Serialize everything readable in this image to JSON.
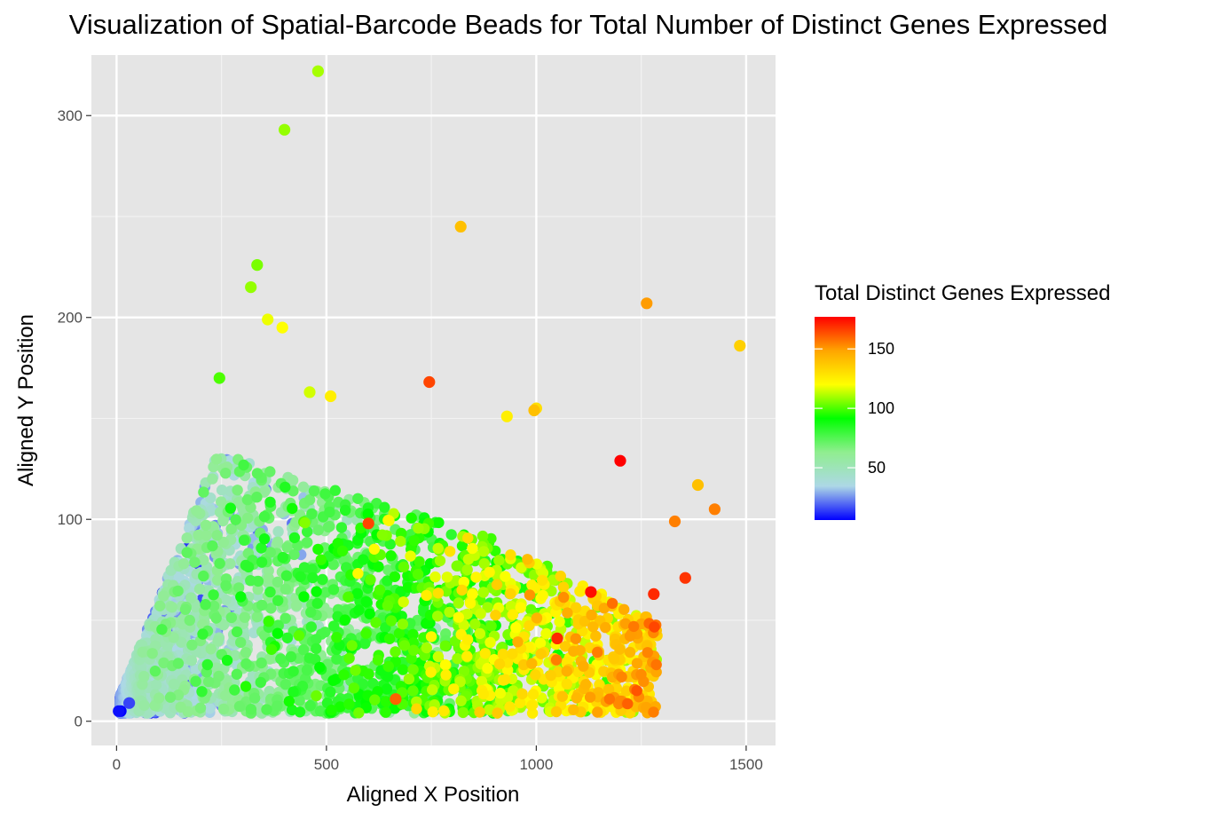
{
  "chart_data": {
    "type": "scatter",
    "title": "Visualization of Spatial-Barcode Beads for Total Number of Distinct Genes Expressed",
    "xlabel": "Aligned X Position",
    "ylabel": "Aligned Y Position",
    "xlim": [
      -60,
      1570
    ],
    "ylim": [
      -12,
      330
    ],
    "x_ticks": [
      0,
      500,
      1000,
      1500
    ],
    "x_tick_labels": [
      "0",
      "500",
      "1000",
      "1500"
    ],
    "y_ticks": [
      0,
      100,
      200,
      300
    ],
    "y_tick_labels": [
      "0",
      "100",
      "200",
      "300"
    ],
    "grid": true,
    "background": "#e5e5e5",
    "legend": {
      "title": "Total Distinct Genes Expressed",
      "position": "right",
      "range": [
        6,
        177
      ],
      "breaks": [
        50,
        100,
        150
      ],
      "break_labels": [
        "50",
        "100",
        "150"
      ],
      "gradient_colors": [
        "#0000ff",
        "#add8e6",
        "#90ee90",
        "#00ff00",
        "#ffff00",
        "#ffa500",
        "#ff0000"
      ]
    },
    "series": [
      {
        "color_encoding": "total_distinct_genes_expressed",
        "points": [
          {
            "x": 480,
            "y": 322,
            "v": 110
          },
          {
            "x": 400,
            "y": 293,
            "v": 108
          },
          {
            "x": 820,
            "y": 245,
            "v": 140
          },
          {
            "x": 335,
            "y": 226,
            "v": 105
          },
          {
            "x": 320,
            "y": 215,
            "v": 108
          },
          {
            "x": 360,
            "y": 199,
            "v": 118
          },
          {
            "x": 395,
            "y": 195,
            "v": 120
          },
          {
            "x": 1263,
            "y": 207,
            "v": 150
          },
          {
            "x": 1485,
            "y": 186,
            "v": 135
          },
          {
            "x": 745,
            "y": 168,
            "v": 165
          },
          {
            "x": 1200,
            "y": 129,
            "v": 177
          },
          {
            "x": 245,
            "y": 170,
            "v": 100
          },
          {
            "x": 460,
            "y": 163,
            "v": 115
          },
          {
            "x": 510,
            "y": 161,
            "v": 125
          },
          {
            "x": 1000,
            "y": 155,
            "v": 130
          },
          {
            "x": 995,
            "y": 154,
            "v": 140
          },
          {
            "x": 930,
            "y": 151,
            "v": 125
          },
          {
            "x": 1385,
            "y": 117,
            "v": 140
          },
          {
            "x": 1425,
            "y": 105,
            "v": 155
          },
          {
            "x": 1130,
            "y": 64,
            "v": 175
          },
          {
            "x": 1280,
            "y": 63,
            "v": 170
          },
          {
            "x": 1355,
            "y": 71,
            "v": 168
          },
          {
            "x": 1050,
            "y": 41,
            "v": 170
          },
          {
            "x": 600,
            "y": 98,
            "v": 165
          },
          {
            "x": 1330,
            "y": 99,
            "v": 155
          },
          {
            "x": 665,
            "y": 11,
            "v": 160
          },
          {
            "x": 30,
            "y": 9,
            "v": 15
          },
          {
            "x": 10,
            "y": 5,
            "v": 6
          },
          {
            "x": 5,
            "y": 5,
            "v": 8
          }
        ]
      }
    ],
    "dense_cloud": {
      "note_free": true,
      "n_points": 3200
    }
  }
}
